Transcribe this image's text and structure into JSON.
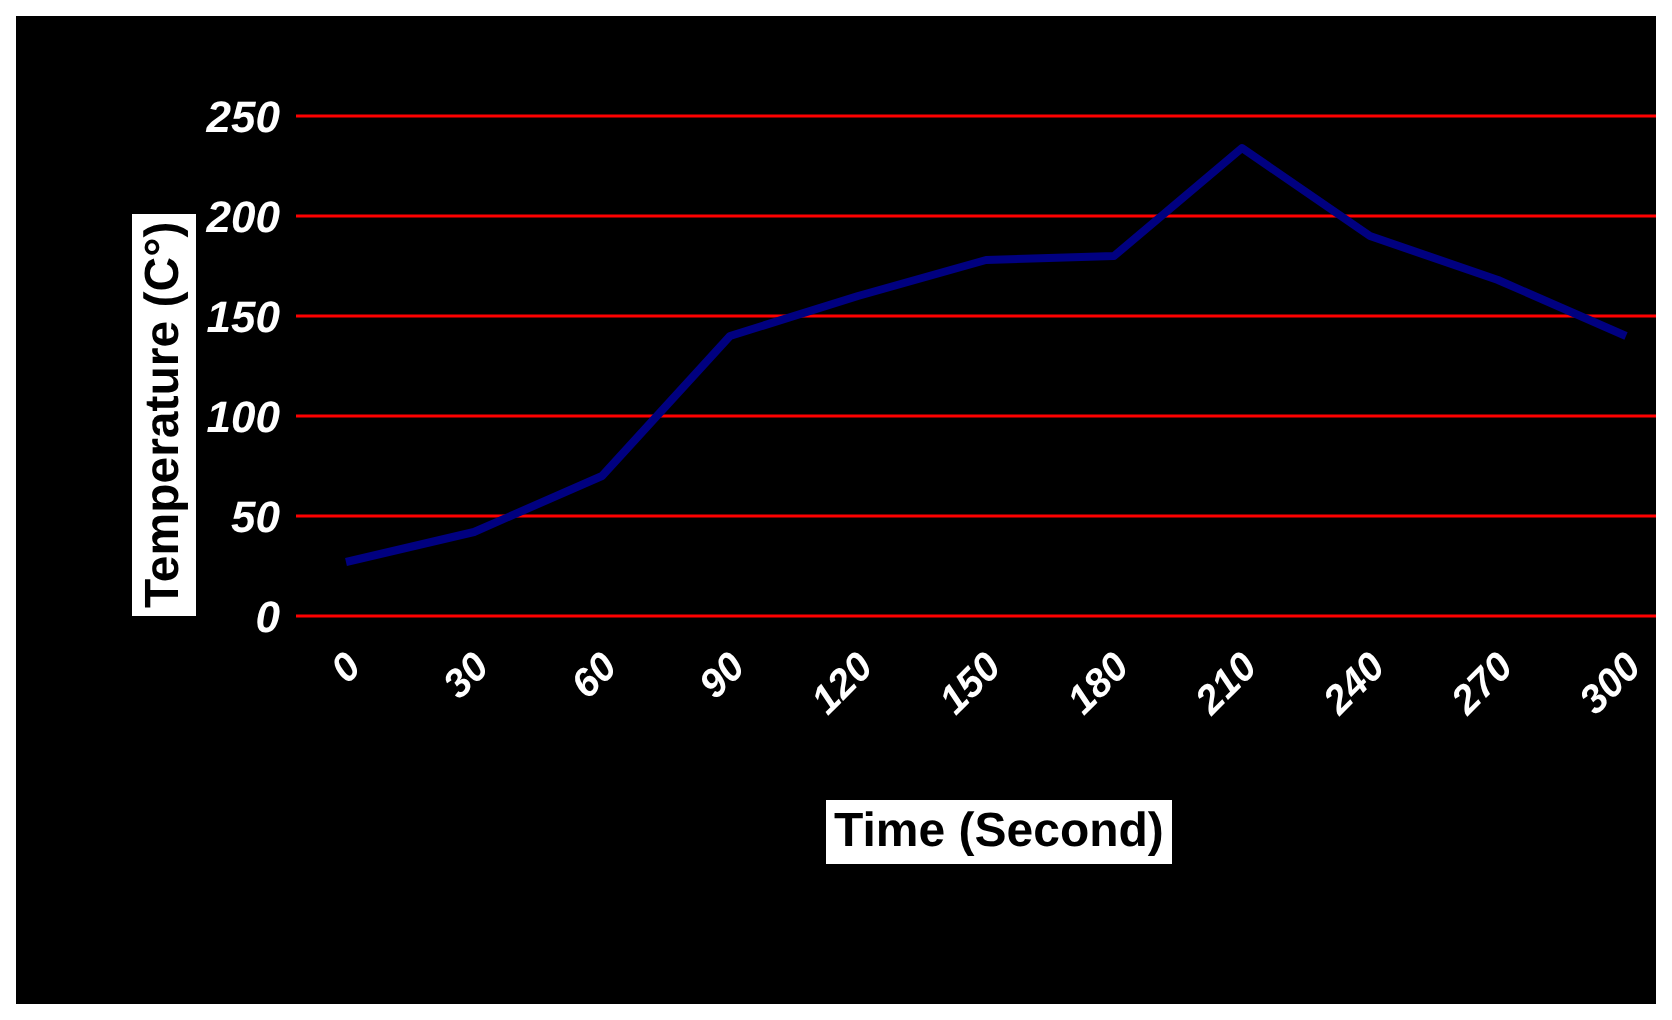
{
  "chart_data": {
    "type": "line",
    "xlabel": "Time (Second)",
    "ylabel": "Temperature (C°)",
    "categories": [
      "0",
      "30",
      "60",
      "90",
      "120",
      "150",
      "180",
      "210",
      "240",
      "270",
      "300"
    ],
    "series": [
      {
        "color": "#000080",
        "values": [
          27,
          42,
          70,
          140,
          160,
          178,
          180,
          234,
          190,
          168,
          140
        ]
      }
    ],
    "ylim": [
      0,
      250
    ],
    "yticks": [
      0,
      50,
      100,
      150,
      200,
      250
    ],
    "grid": "y",
    "legend": false,
    "marker": "none",
    "line_style": "solid"
  }
}
